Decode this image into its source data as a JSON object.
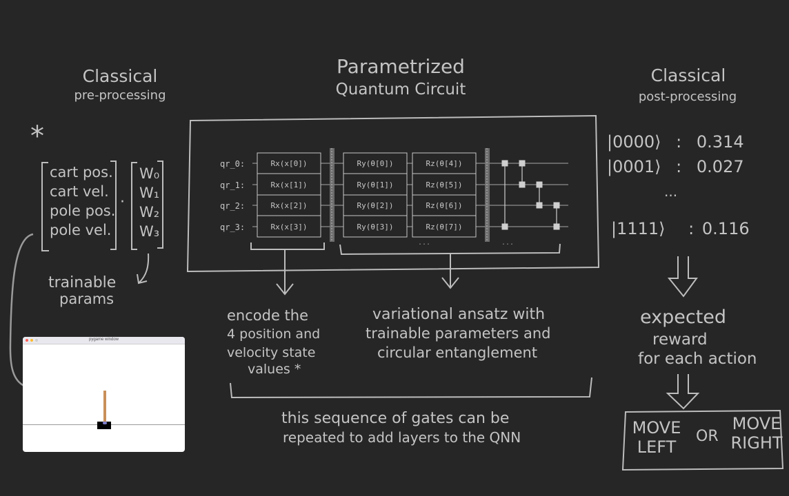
{
  "preprocessing": {
    "title_1": "Classical",
    "title_2": "pre-processing",
    "asterisk": "*",
    "state_vector": [
      "cart pos.",
      "cart vel.",
      "pole pos.",
      "pole vel."
    ],
    "dot": "·",
    "weights": [
      "W₀",
      "W₁",
      "W₂",
      "W₃"
    ],
    "trainable_1": "trainable",
    "trainable_2": "params"
  },
  "pqc": {
    "title_1": "Parametrized",
    "title_2": "Quantum Circuit",
    "qubits": [
      "qr_0:",
      "qr_1:",
      "qr_2:",
      "qr_3:"
    ],
    "encoding_gates": [
      "Rx(x[0])",
      "Rx(x[1])",
      "Rx(x[2])",
      "Rx(x[3])"
    ],
    "ry_gates": [
      "Ry(θ[0])",
      "Ry(θ[1])",
      "Ry(θ[2])",
      "Ry(θ[3])"
    ],
    "rz_gates": [
      "Rz(θ[4])",
      "Rz(θ[5])",
      "Rz(θ[6])",
      "Rz(θ[7])"
    ],
    "ellipsis_1": "...",
    "ellipsis_2": "..."
  },
  "annotations": {
    "encode": [
      "encode the",
      "4 position and",
      "velocity state",
      "values *"
    ],
    "ansatz": [
      "variational ansatz with",
      "trainable parameters  and",
      "circular entanglement"
    ],
    "repeat": [
      "this sequence of gates can be",
      "repeated to add layers to the QNN"
    ]
  },
  "postprocessing": {
    "title_1": "Classical",
    "title_2": "post-processing",
    "probs": [
      {
        "state": "|0000⟩",
        "sep": ":",
        "value": "0.314"
      },
      {
        "state": "|0001⟩",
        "sep": ":",
        "value": "0.027"
      },
      {
        "state": "|1111⟩",
        "sep": ":",
        "value": "0.116"
      }
    ],
    "dots": "...",
    "expected": [
      "expected",
      "reward",
      "for each action"
    ],
    "action_left": [
      "MOVE",
      "LEFT"
    ],
    "or": "OR",
    "action_right": [
      "MOVE",
      "RIGHT"
    ]
  },
  "game_window": {
    "title": "pygame window",
    "dot_colors": [
      "#ff5f57",
      "#febc2e",
      "#cfcfcf"
    ]
  },
  "colors": {
    "background": "#262626",
    "ink": "#c4c4c4",
    "arrow": "#9a9a9a"
  }
}
